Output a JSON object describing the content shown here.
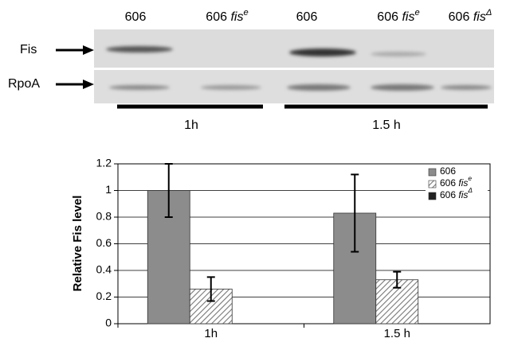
{
  "blot": {
    "lanes": [
      {
        "strain": "606"
      },
      {
        "strain": "606",
        "gene": "fis",
        "sup": "e"
      },
      {
        "strain": "606"
      },
      {
        "strain": "606",
        "gene": "fis",
        "sup": "e"
      },
      {
        "strain": "606",
        "gene": "fis",
        "sup": "Δ"
      }
    ],
    "rows": [
      "Fis",
      "RpoA"
    ],
    "times": [
      "1h",
      "1.5 h"
    ]
  },
  "chart_data": {
    "type": "bar",
    "y_label": "Relative Fis level",
    "categories": [
      "1h",
      "1.5 h"
    ],
    "series": [
      {
        "name": "606",
        "color": "#8c8c8c",
        "values": [
          1.0,
          0.83
        ],
        "errors": [
          0.2,
          0.29
        ]
      },
      {
        "name": "606",
        "name_italic": "fis",
        "name_sup": "e",
        "color": "#777777",
        "hatch": true,
        "values": [
          0.26,
          0.33
        ],
        "errors": [
          0.09,
          0.06
        ]
      },
      {
        "name": "606",
        "name_italic": "fis",
        "name_sup": "Δ",
        "color": "#222222",
        "values": [
          0,
          0
        ]
      }
    ],
    "ylim": [
      0,
      1.2
    ],
    "yticks": [
      0,
      0.2,
      0.4,
      0.6,
      0.8,
      1,
      1.2
    ],
    "grid": true,
    "legend": "top-right"
  }
}
